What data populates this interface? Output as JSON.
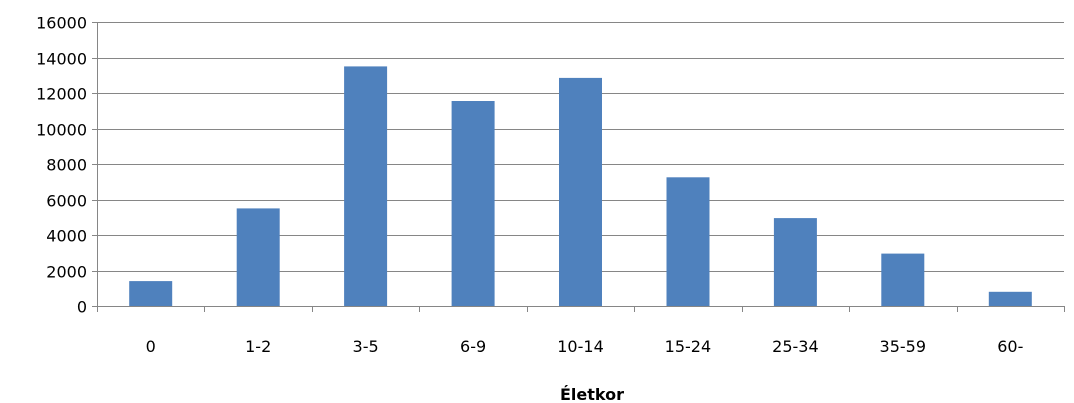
{
  "chart_data": {
    "type": "bar",
    "title": "",
    "xlabel": "Életkor",
    "ylabel": "",
    "categories": [
      "0",
      "1-2",
      "3-5",
      "6-9",
      "10-14",
      "15-24",
      "25-34",
      "35-59",
      "60-"
    ],
    "values": [
      1400,
      5500,
      13500,
      11550,
      12850,
      7250,
      4950,
      2950,
      800
    ],
    "ylim": [
      0,
      16000
    ],
    "yticks": [
      "0",
      "2000",
      "4000",
      "6000",
      "8000",
      "10000",
      "12000",
      "14000",
      "16000"
    ],
    "grid": true,
    "legend": "none",
    "colors": {
      "bar": "#4F81BD",
      "grid": "#868686",
      "axis": "#868686"
    }
  }
}
